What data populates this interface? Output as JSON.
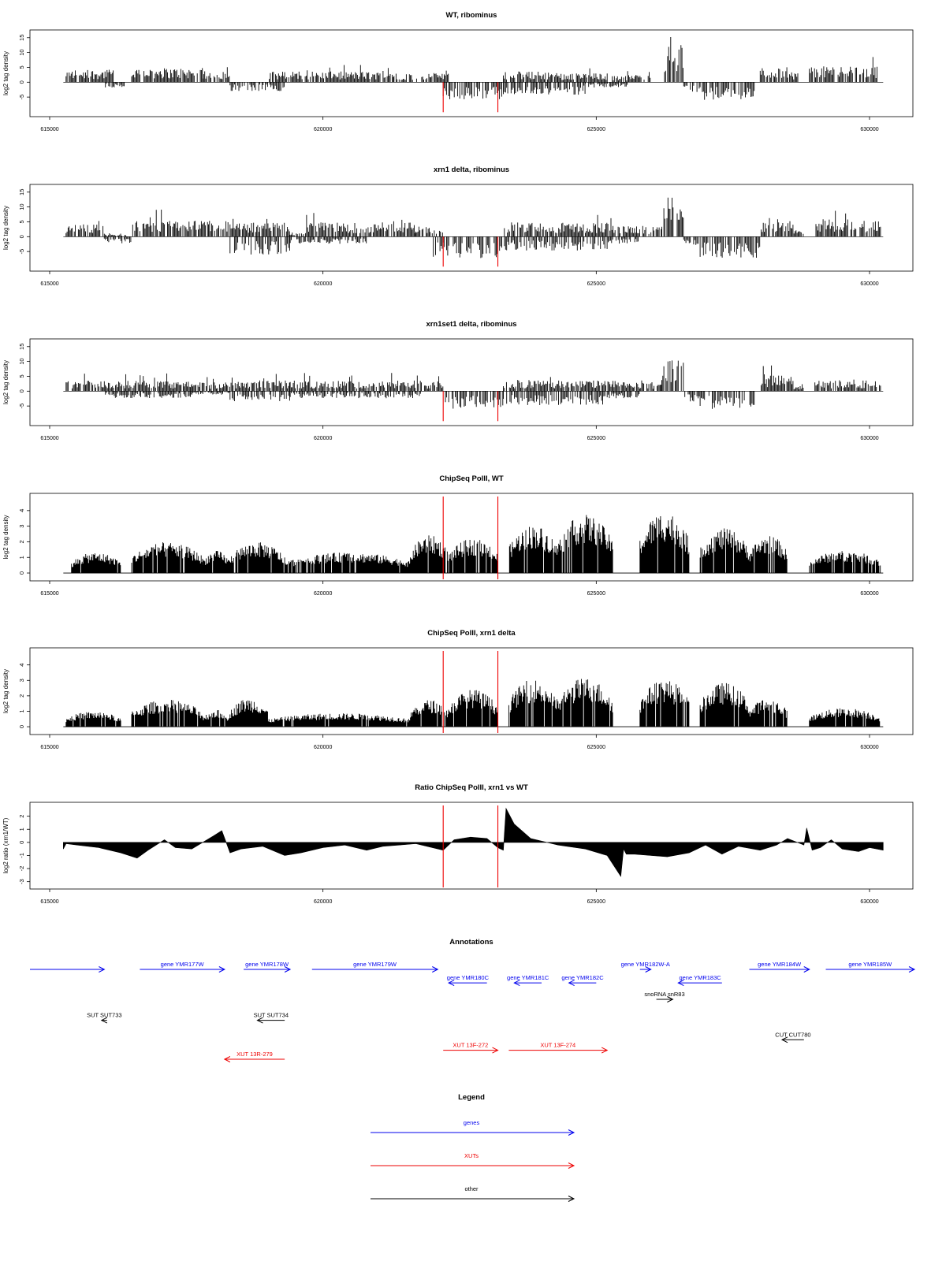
{
  "chart_data": [
    {
      "type": "bar",
      "title": "WT, ribominus",
      "ylabel": "log2 tag density",
      "xlim": [
        615000,
        630300
      ],
      "ylim": [
        -10,
        16
      ],
      "yticks": [
        -5,
        0,
        5,
        10,
        15
      ],
      "xticks": [
        615000,
        620000,
        625000,
        630000
      ],
      "vlines": [
        622200,
        623200
      ],
      "plus_strand": [
        [
          615300,
          616200,
          3.5
        ],
        [
          616500,
          617800,
          4
        ],
        [
          617800,
          618300,
          3
        ],
        [
          619000,
          621300,
          3
        ],
        [
          621300,
          622300,
          2.5
        ],
        [
          623300,
          624300,
          3
        ],
        [
          624300,
          625200,
          2.5
        ],
        [
          625200,
          626000,
          2
        ],
        [
          626250,
          626600,
          11
        ],
        [
          628000,
          628500,
          4
        ],
        [
          628500,
          628700,
          3
        ],
        [
          628900,
          630200,
          4.5
        ]
      ],
      "minus_strand": [
        [
          616000,
          616400,
          -1.5
        ],
        [
          618300,
          619300,
          -2.5
        ],
        [
          622200,
          623300,
          -5
        ],
        [
          623300,
          624800,
          -3.5
        ],
        [
          624800,
          625600,
          -1.5
        ],
        [
          626600,
          626900,
          -3
        ],
        [
          626900,
          627900,
          -5
        ]
      ]
    },
    {
      "type": "bar",
      "title": "xrn1 delta, ribominus",
      "ylabel": "log2 tag density",
      "xlim": [
        615000,
        630300
      ],
      "ylim": [
        -10,
        16
      ],
      "yticks": [
        -5,
        0,
        5,
        10,
        15
      ],
      "xticks": [
        615000,
        620000,
        625000,
        630000
      ],
      "vlines": [
        622200,
        623200
      ],
      "plus_strand": [
        [
          615300,
          616000,
          3.5
        ],
        [
          616000,
          616400,
          1
        ],
        [
          616500,
          618300,
          4.5
        ],
        [
          618300,
          619400,
          4
        ],
        [
          619400,
          619700,
          1
        ],
        [
          619700,
          621700,
          4
        ],
        [
          621700,
          622200,
          3
        ],
        [
          623300,
          625400,
          4
        ],
        [
          625400,
          626200,
          3
        ],
        [
          626200,
          626600,
          11
        ],
        [
          628000,
          628600,
          4
        ],
        [
          628600,
          628800,
          2
        ],
        [
          629000,
          630200,
          5
        ]
      ],
      "minus_strand": [
        [
          616000,
          616500,
          -2
        ],
        [
          618300,
          619400,
          -5
        ],
        [
          619400,
          620800,
          -2
        ],
        [
          622000,
          623300,
          -6
        ],
        [
          623300,
          625200,
          -4
        ],
        [
          625200,
          625800,
          -2
        ],
        [
          626600,
          626900,
          -3
        ],
        [
          626900,
          628000,
          -6
        ]
      ]
    },
    {
      "type": "bar",
      "title": "xrn1set1 delta, ribominus",
      "ylabel": "log2 tag density",
      "xlim": [
        615000,
        630300
      ],
      "ylim": [
        -10,
        16
      ],
      "yticks": [
        -5,
        0,
        5,
        10,
        15
      ],
      "xticks": [
        615000,
        620000,
        625000,
        630000
      ],
      "vlines": [
        622200,
        623200
      ],
      "plus_strand": [
        [
          615300,
          616000,
          3
        ],
        [
          616000,
          617600,
          3
        ],
        [
          617600,
          618300,
          2.5
        ],
        [
          618300,
          619400,
          3
        ],
        [
          619400,
          621800,
          3
        ],
        [
          621800,
          622200,
          2.5
        ],
        [
          623300,
          625400,
          3
        ],
        [
          625400,
          626200,
          2.5
        ],
        [
          626200,
          626600,
          9
        ],
        [
          628000,
          628600,
          4.5
        ],
        [
          628600,
          628800,
          2
        ],
        [
          629000,
          630200,
          3
        ]
      ],
      "minus_strand": [
        [
          616000,
          617600,
          -2
        ],
        [
          617600,
          618300,
          -1
        ],
        [
          618300,
          619400,
          -3
        ],
        [
          619400,
          621800,
          -2
        ],
        [
          622200,
          623300,
          -5
        ],
        [
          623300,
          625200,
          -4
        ],
        [
          625200,
          625800,
          -2
        ],
        [
          626600,
          626900,
          -3
        ],
        [
          626900,
          627900,
          -5
        ]
      ]
    },
    {
      "type": "bar",
      "title": "ChipSeq PolII, WT",
      "ylabel": "log2 tag density",
      "xlim": [
        615000,
        630300
      ],
      "ylim": [
        -0.2,
        4.8
      ],
      "yticks": [
        0,
        1,
        2,
        3,
        4
      ],
      "xticks": [
        615000,
        620000,
        625000,
        630000
      ],
      "vlines": [
        622200,
        623200
      ],
      "baseline": [
        615250,
        630250
      ],
      "segments": [
        [
          615400,
          616300,
          1.2
        ],
        [
          616500,
          617800,
          1.8
        ],
        [
          617800,
          618300,
          1.3
        ],
        [
          618300,
          619300,
          1.8
        ],
        [
          619300,
          621600,
          1.2
        ],
        [
          621600,
          622300,
          2.2
        ],
        [
          622300,
          623200,
          2.0
        ],
        [
          623400,
          624300,
          2.8
        ],
        [
          624300,
          625300,
          3.4
        ],
        [
          625800,
          626700,
          3.6
        ],
        [
          626900,
          627800,
          2.6
        ],
        [
          627800,
          628500,
          2.2
        ],
        [
          628900,
          630200,
          1.3
        ]
      ]
    },
    {
      "type": "bar",
      "title": "ChipSeq PolII, xrn1 delta",
      "ylabel": "log2 tag density",
      "xlim": [
        615000,
        630300
      ],
      "ylim": [
        -0.2,
        4.8
      ],
      "yticks": [
        0,
        1,
        2,
        3,
        4
      ],
      "xticks": [
        615000,
        620000,
        625000,
        630000
      ],
      "vlines": [
        622200,
        623200
      ],
      "baseline": [
        615250,
        630250
      ],
      "segments": [
        [
          615300,
          616300,
          0.9
        ],
        [
          616500,
          617800,
          1.6
        ],
        [
          617800,
          618300,
          1.0
        ],
        [
          618300,
          619000,
          1.7
        ],
        [
          619000,
          621600,
          0.8
        ],
        [
          621600,
          622300,
          1.6
        ],
        [
          622300,
          623200,
          2.2
        ],
        [
          623400,
          624300,
          2.8
        ],
        [
          624300,
          625300,
          2.9
        ],
        [
          625800,
          626700,
          2.8
        ],
        [
          626900,
          627800,
          2.6
        ],
        [
          627800,
          628500,
          1.7
        ],
        [
          628900,
          630200,
          1.1
        ]
      ]
    },
    {
      "type": "area",
      "title": "Ratio ChipSeq PolII, xrn1 vs WT",
      "ylabel": "log2 ratio (xrn1/WT)",
      "xlim": [
        615000,
        630300
      ],
      "ylim": [
        -3.2,
        2.7
      ],
      "yticks": [
        -3,
        -2,
        -1,
        0,
        1,
        2
      ],
      "xticks": [
        615000,
        620000,
        625000,
        630000
      ],
      "vlines": [
        622200,
        623200
      ],
      "x": [
        615250,
        615300,
        615500,
        615900,
        616300,
        616600,
        616800,
        617100,
        617300,
        617600,
        618000,
        618150,
        618300,
        618500,
        618900,
        619300,
        619600,
        620000,
        620400,
        620800,
        621100,
        621400,
        621700,
        622000,
        622200,
        622400,
        622700,
        623000,
        623200,
        623300,
        623350,
        623500,
        623800,
        624300,
        624800,
        625200,
        625450,
        625500,
        625550,
        625700,
        626000,
        626300,
        626700,
        627000,
        627300,
        627600,
        628000,
        628300,
        628500,
        628800,
        628850,
        628950,
        629100,
        629300,
        629500,
        629800,
        630000,
        630250
      ],
      "y": [
        -0.5,
        -0.1,
        -0.2,
        -0.4,
        -0.8,
        -1.2,
        -0.6,
        0.2,
        -0.4,
        -0.5,
        0.5,
        0.9,
        -0.8,
        -0.5,
        -0.3,
        -1.0,
        -0.8,
        -0.4,
        -0.2,
        -0.6,
        -0.3,
        -0.2,
        -0.1,
        -0.4,
        -0.6,
        0.2,
        0.4,
        0.3,
        -0.4,
        -0.6,
        2.6,
        1.4,
        0.3,
        -0.2,
        -0.5,
        -1.0,
        -2.6,
        -0.5,
        -0.9,
        -0.9,
        -1.0,
        -1.1,
        -0.8,
        -0.2,
        -0.9,
        -0.3,
        -0.6,
        -0.2,
        0.3,
        -0.2,
        1.1,
        -0.6,
        -0.4,
        0.2,
        -0.5,
        -0.7,
        -0.4,
        -0.6
      ]
    }
  ],
  "annotations": {
    "title": "Annotations",
    "items": [
      {
        "label": "",
        "color": "#0000ee",
        "x1": 612200,
        "x2": 616000,
        "row": 0
      },
      {
        "label": "gene YMR177W",
        "color": "#0000ee",
        "x1": 616650,
        "x2": 618200,
        "row": 0
      },
      {
        "label": "gene YMR178W",
        "color": "#0000ee",
        "x1": 618550,
        "x2": 619400,
        "row": 0
      },
      {
        "label": "gene YMR179W",
        "color": "#0000ee",
        "x1": 619800,
        "x2": 622100,
        "row": 0
      },
      {
        "label": "gene YMR180C",
        "color": "#0000ee",
        "x1": 623000,
        "x2": 622300,
        "row": 0.45
      },
      {
        "label": "gene YMR181C",
        "color": "#0000ee",
        "x1": 624000,
        "x2": 623500,
        "row": 0.45
      },
      {
        "label": "gene YMR182C",
        "color": "#0000ee",
        "x1": 625000,
        "x2": 624500,
        "row": 0.45
      },
      {
        "label": "gene YMR182W-A",
        "color": "#0000ee",
        "x1": 625800,
        "x2": 626000,
        "row": 0
      },
      {
        "label": "gene YMR183C",
        "color": "#0000ee",
        "x1": 627300,
        "x2": 626500,
        "row": 0.45
      },
      {
        "label": "gene YMR184W",
        "color": "#0000ee",
        "x1": 627800,
        "x2": 628900,
        "row": 0
      },
      {
        "label": "gene YMR185W",
        "color": "#0000ee",
        "x1": 629200,
        "x2": 631200,
        "row": 0
      },
      {
        "label": "snoRNA snR83",
        "color": "#000000",
        "x1": 626100,
        "x2": 626400,
        "row": 1.0
      },
      {
        "label": "SUT SUT733",
        "color": "#000000",
        "x1": 616050,
        "x2": 615950,
        "row": 1.7
      },
      {
        "label": "SUT SUT734",
        "color": "#000000",
        "x1": 619300,
        "x2": 618800,
        "row": 1.7
      },
      {
        "label": "CUT CUT780",
        "color": "#000000",
        "x1": 628800,
        "x2": 628400,
        "row": 2.35
      },
      {
        "label": "XUT 13R-279",
        "color": "#ee0000",
        "x1": 619300,
        "x2": 618200,
        "row": 3.0
      },
      {
        "label": "XUT 13F-272",
        "color": "#ee0000",
        "x1": 622200,
        "x2": 623200,
        "row": 2.7
      },
      {
        "label": "XUT 13F-274",
        "color": "#ee0000",
        "x1": 623400,
        "x2": 625200,
        "row": 2.7
      }
    ]
  },
  "legend": {
    "title": "Legend",
    "entries": [
      {
        "label": "genes",
        "color": "#0000ee"
      },
      {
        "label": "XUTs",
        "color": "#ee0000"
      },
      {
        "label": "other",
        "color": "#000000"
      }
    ]
  }
}
